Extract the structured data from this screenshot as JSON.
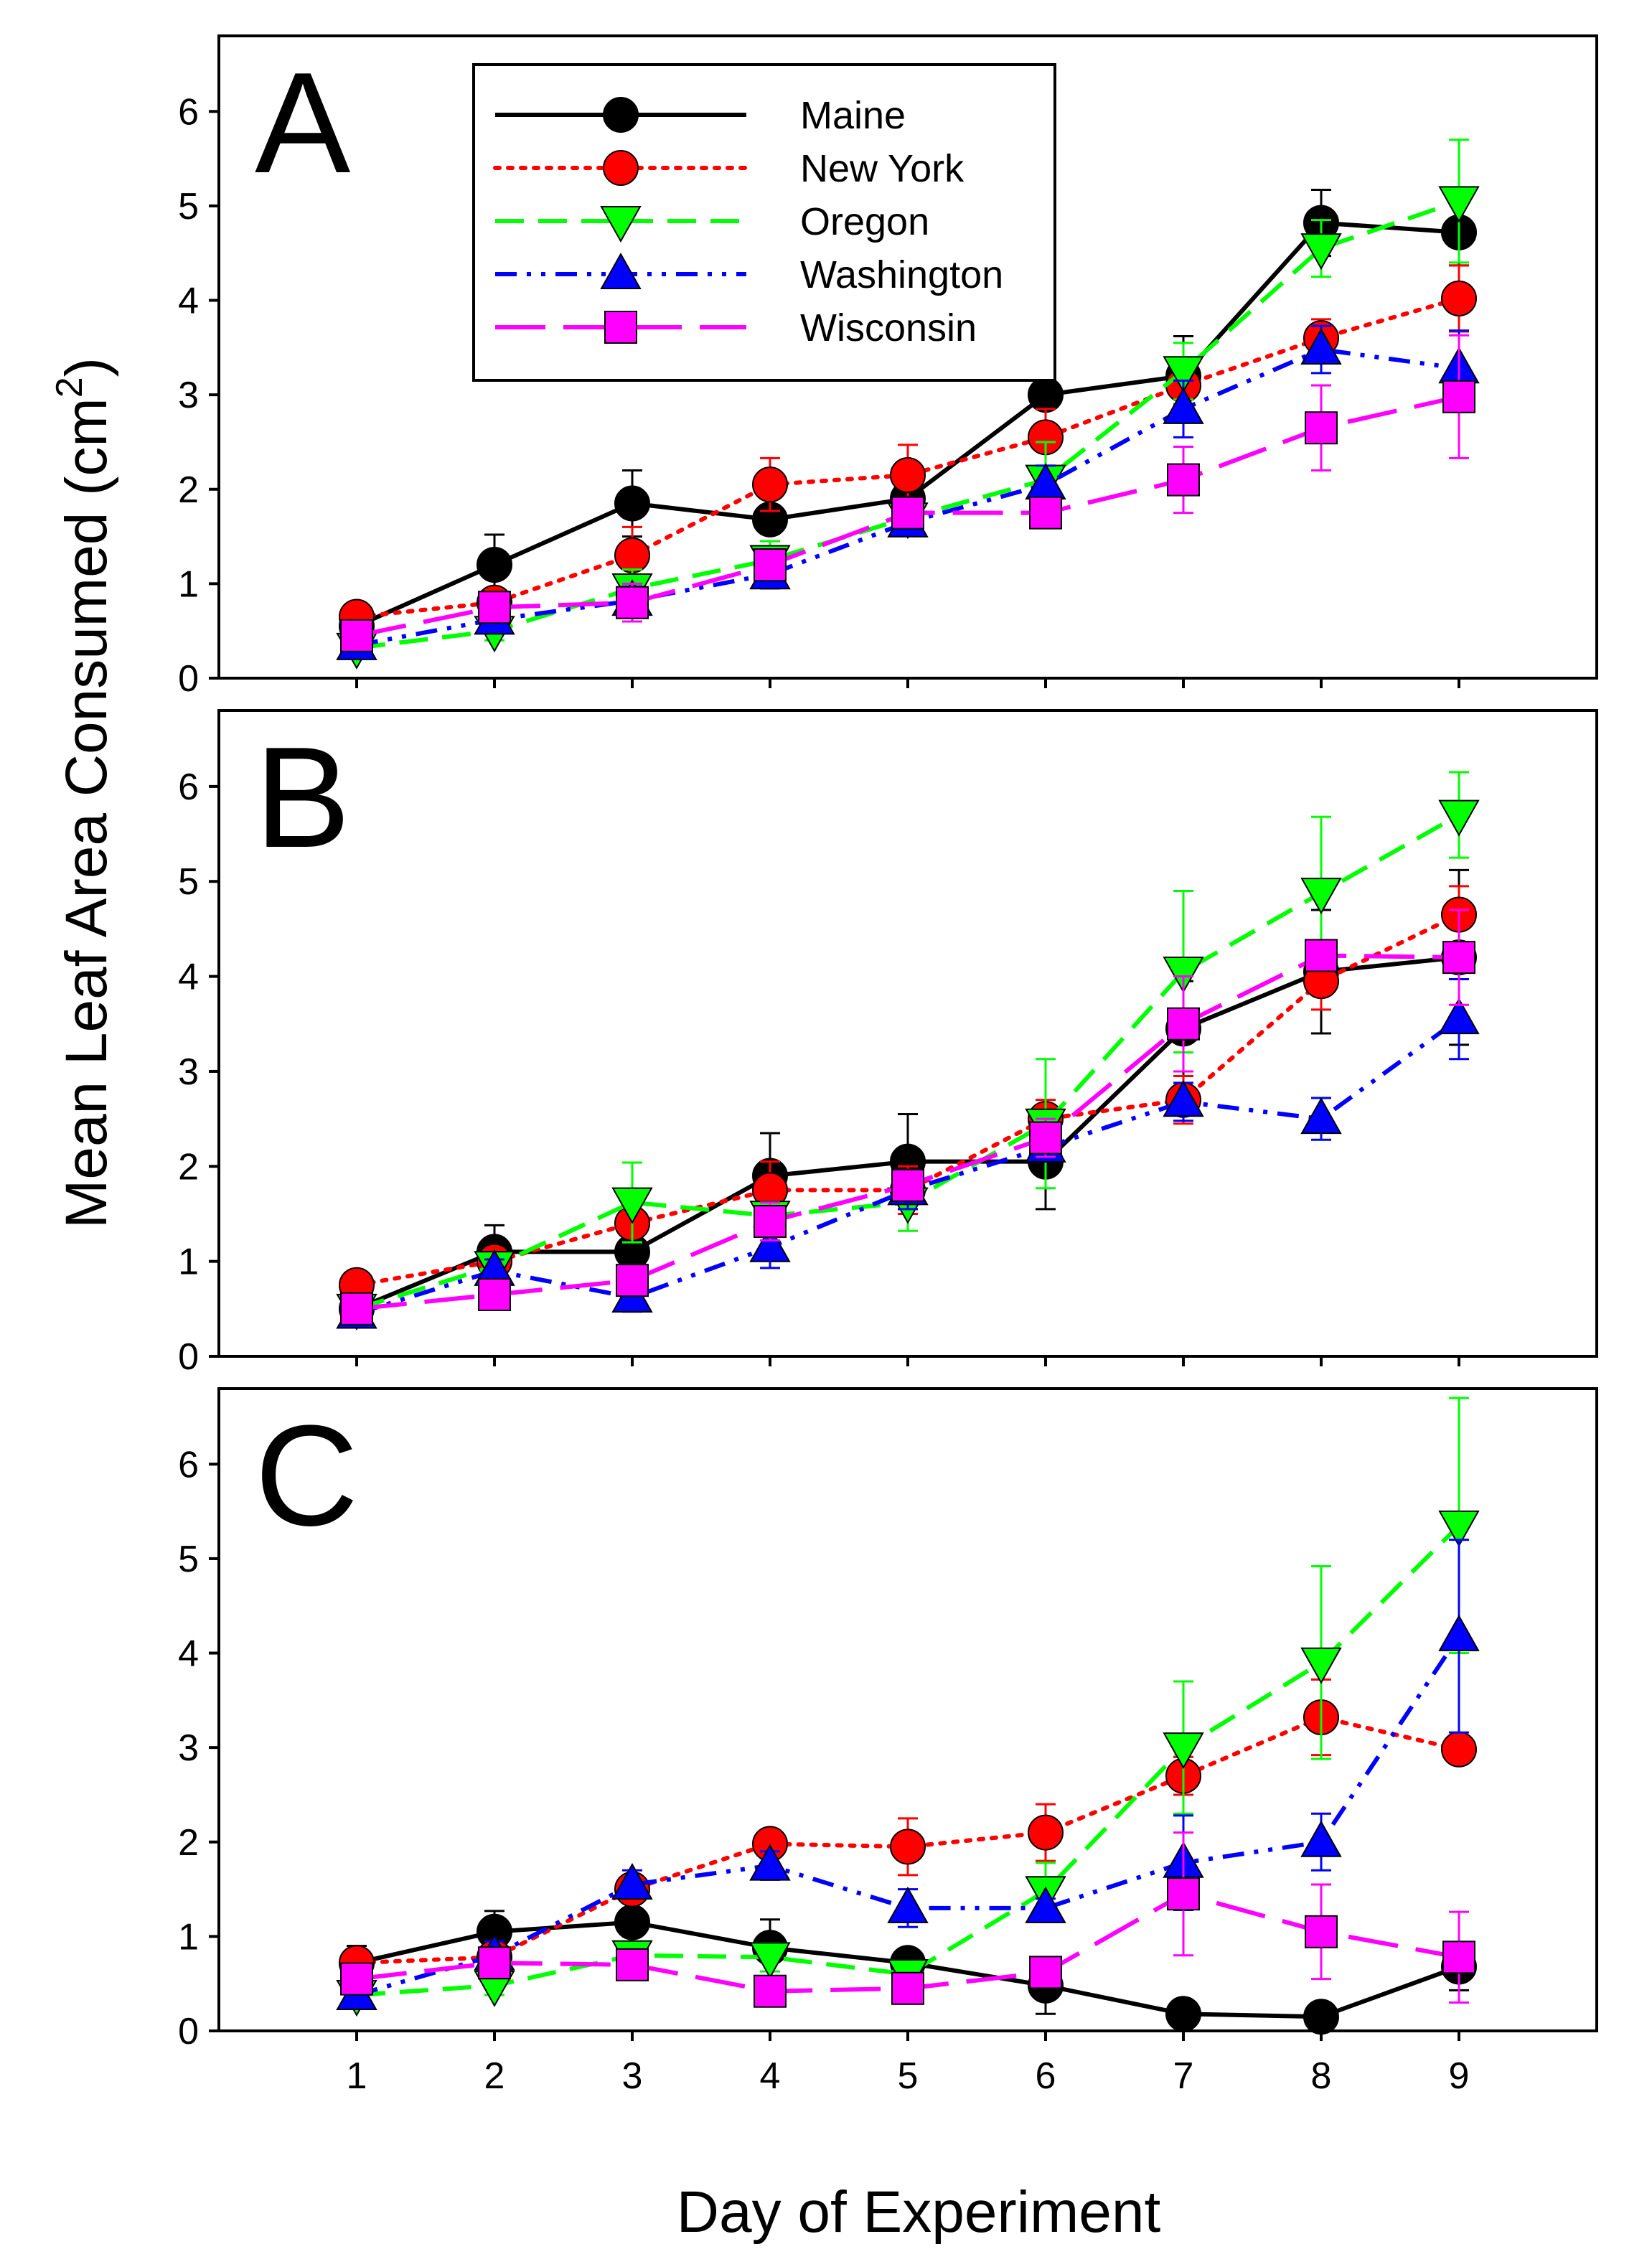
{
  "chart_data": {
    "type": "line",
    "title": "",
    "ylabel": "Mean Leaf Area Consumed (cm",
    "ylabel_sup": "2",
    "ylabel_close": ")",
    "xlabel": "Day of Experiment",
    "x": [
      1,
      2,
      3,
      4,
      5,
      6,
      7,
      8,
      9
    ],
    "x_ticks": [
      "1",
      "2",
      "3",
      "4",
      "5",
      "6",
      "7",
      "8",
      "9"
    ],
    "xlim": [
      0,
      10
    ],
    "ylim": [
      0,
      6.8
    ],
    "y_ticks": [
      "0",
      "1",
      "2",
      "3",
      "4",
      "5",
      "6"
    ],
    "legend": {
      "placement": "top-left (panel A)",
      "entries": [
        "Maine",
        "New York",
        "Oregon",
        "Washington",
        "Wisconsin"
      ]
    },
    "series_styles": [
      {
        "name": "Maine",
        "color": "#000000",
        "marker": "circle",
        "dash": "solid"
      },
      {
        "name": "New York",
        "color": "#ff0000",
        "marker": "circle",
        "dash": "dotted"
      },
      {
        "name": "Oregon",
        "color": "#00ff00",
        "marker": "triangle-down",
        "dash": "dashed"
      },
      {
        "name": "Washington",
        "color": "#0000ff",
        "marker": "triangle-up",
        "dash": "dash-dot-dot"
      },
      {
        "name": "Wisconsin",
        "color": "#ff00ff",
        "marker": "square",
        "dash": "long-dash"
      }
    ],
    "panels": [
      {
        "label": "A",
        "series": [
          {
            "name": "Maine",
            "values": [
              0.55,
              1.2,
              1.85,
              1.68,
              1.9,
              3.0,
              3.2,
              4.82,
              4.72
            ],
            "errors": [
              0.1,
              0.32,
              0.35,
              0.15,
              0.2,
              0.55,
              0.42,
              0.35,
              0.35
            ]
          },
          {
            "name": "New York",
            "values": [
              0.65,
              0.8,
              1.3,
              2.05,
              2.15,
              2.55,
              3.1,
              3.6,
              4.02
            ],
            "errors": [
              0.05,
              0.1,
              0.3,
              0.28,
              0.32,
              0.3,
              0.2,
              0.2,
              0.35
            ]
          },
          {
            "name": "Oregon",
            "values": [
              0.32,
              0.5,
              0.95,
              1.25,
              1.7,
              2.1,
              3.25,
              4.55,
              5.05
            ],
            "errors": [
              0.05,
              0.1,
              0.2,
              0.2,
              0.15,
              0.4,
              0.3,
              0.3,
              0.65
            ]
          },
          {
            "name": "Washington",
            "values": [
              0.35,
              0.62,
              0.82,
              1.1,
              1.65,
              2.05,
              2.85,
              3.48,
              3.28
            ],
            "errors": [
              0.05,
              0.1,
              0.15,
              0.15,
              0.1,
              0.2,
              0.3,
              0.25,
              0.4
            ]
          },
          {
            "name": "Wisconsin",
            "values": [
              0.45,
              0.75,
              0.8,
              1.2,
              1.75,
              1.75,
              2.1,
              2.65,
              2.98
            ],
            "errors": [
              0.05,
              0.1,
              0.2,
              0.15,
              0.1,
              0.1,
              0.35,
              0.45,
              0.65
            ]
          }
        ]
      },
      {
        "label": "B",
        "series": [
          {
            "name": "Maine",
            "values": [
              0.5,
              1.1,
              1.1,
              1.9,
              2.05,
              2.05,
              3.45,
              4.05,
              4.2
            ],
            "errors": [
              0.05,
              0.28,
              0.22,
              0.45,
              0.5,
              0.5,
              0.5,
              0.65,
              0.92
            ]
          },
          {
            "name": "New York",
            "values": [
              0.75,
              1.0,
              1.4,
              1.75,
              1.75,
              2.5,
              2.7,
              3.95,
              4.65
            ],
            "errors": [
              0.05,
              0.1,
              0.2,
              0.3,
              0.25,
              0.2,
              0.25,
              0.3,
              0.3
            ]
          },
          {
            "name": "Oregon",
            "values": [
              0.5,
              0.95,
              1.62,
              1.48,
              1.62,
              2.45,
              4.05,
              4.88,
              5.7
            ],
            "errors": [
              0.05,
              0.1,
              0.42,
              0.15,
              0.3,
              0.68,
              0.85,
              0.8,
              0.45
            ]
          },
          {
            "name": "Washington",
            "values": [
              0.45,
              0.9,
              0.62,
              1.15,
              1.75,
              2.2,
              2.68,
              2.5,
              3.55
            ],
            "errors": [
              0.05,
              0.12,
              0.15,
              0.22,
              0.2,
              0.15,
              0.2,
              0.22,
              0.42
            ]
          },
          {
            "name": "Wisconsin",
            "values": [
              0.5,
              0.65,
              0.8,
              1.42,
              1.8,
              2.3,
              3.5,
              4.22,
              4.2
            ],
            "errors": [
              0.05,
              0.1,
              0.15,
              0.2,
              0.15,
              0.2,
              0.5,
              0.1,
              0.5
            ]
          }
        ]
      },
      {
        "label": "C",
        "series": [
          {
            "name": "Maine",
            "values": [
              0.72,
              1.05,
              1.15,
              0.88,
              0.72,
              0.48,
              0.18,
              0.15,
              0.68
            ],
            "errors": [
              0.18,
              0.22,
              0.15,
              0.3,
              0.1,
              0.3,
              0.05,
              0.05,
              0.25
            ]
          },
          {
            "name": "New York",
            "values": [
              0.72,
              0.78,
              1.5,
              1.98,
              1.95,
              2.1,
              2.7,
              3.32,
              2.98
            ],
            "errors": [
              0.05,
              0.1,
              0.1,
              0.1,
              0.3,
              0.3,
              0.2,
              0.4,
              0.1
            ]
          },
          {
            "name": "Oregon",
            "values": [
              0.38,
              0.48,
              0.8,
              0.78,
              0.6,
              1.48,
              3.0,
              3.9,
              5.35
            ],
            "errors": [
              0.05,
              0.1,
              0.1,
              0.15,
              0.1,
              0.3,
              0.7,
              1.02,
              1.35
            ]
          },
          {
            "name": "Washington",
            "values": [
              0.38,
              0.8,
              1.55,
              1.75,
              1.3,
              1.3,
              1.78,
              2.0,
              4.18
            ],
            "errors": [
              0.05,
              0.15,
              0.15,
              0.15,
              0.2,
              0.1,
              0.5,
              0.3,
              1.02
            ]
          },
          {
            "name": "Wisconsin",
            "values": [
              0.55,
              0.72,
              0.7,
              0.42,
              0.45,
              0.62,
              1.45,
              1.05,
              0.78
            ],
            "errors": [
              0.05,
              0.1,
              0.1,
              0.1,
              0.1,
              0.1,
              0.65,
              0.5,
              0.48
            ]
          }
        ]
      }
    ]
  }
}
